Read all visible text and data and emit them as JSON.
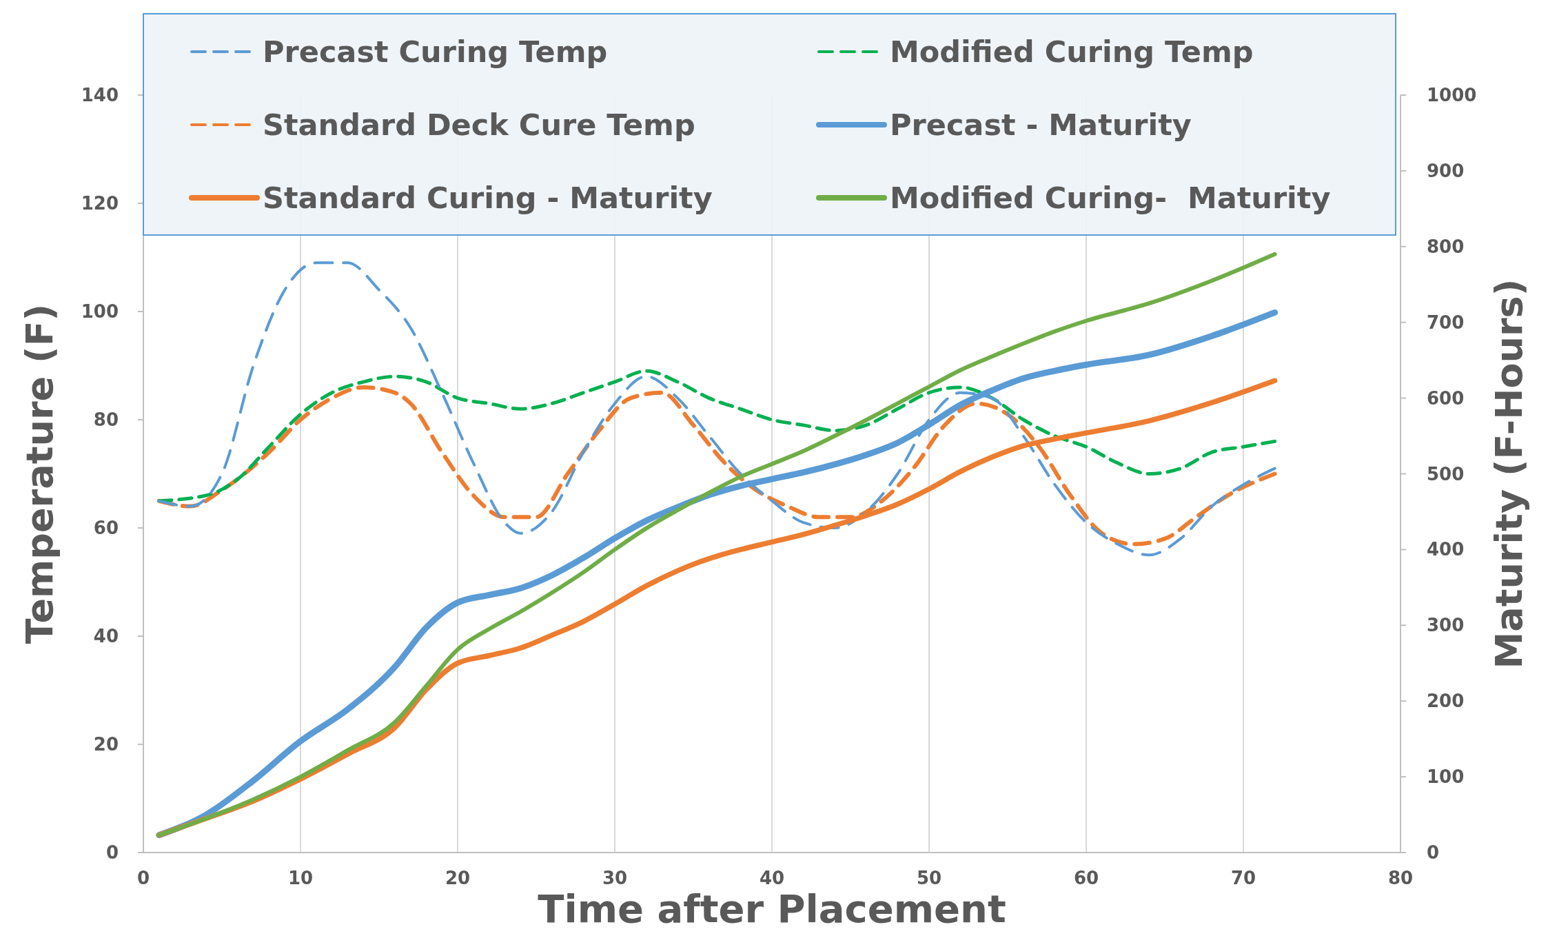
{
  "chart_data": {
    "type": "line",
    "xlabel": "Time after Placement",
    "ylabel": "Temperature (F)",
    "y2label": "Maturity (F-Hours)",
    "xlim": [
      0,
      80
    ],
    "xticks": [
      0,
      10,
      20,
      30,
      40,
      50,
      60,
      70,
      80
    ],
    "ylim": [
      0,
      140
    ],
    "yticks": [
      0,
      20,
      40,
      60,
      80,
      100,
      120,
      140
    ],
    "y2lim": [
      0,
      1000
    ],
    "y2ticks": [
      0,
      100,
      200,
      300,
      400,
      500,
      600,
      700,
      800,
      900,
      1000
    ],
    "grid": "x",
    "legend": "top",
    "series": [
      {
        "name": "Precast Curing Temp",
        "color": "#5b9bd5",
        "line_style": "dashed",
        "x": [
          1,
          3,
          5,
          7,
          9,
          11,
          13,
          15,
          17,
          19,
          21,
          23,
          24,
          26,
          28,
          30,
          32,
          34,
          36,
          38,
          40,
          42,
          44,
          46,
          48,
          50,
          52,
          54,
          56,
          58,
          60,
          62,
          64,
          66,
          68,
          70,
          72
        ],
        "values": [
          65,
          64,
          70,
          90,
          104,
          109,
          109,
          104,
          97,
          85,
          72,
          61,
          59,
          63,
          74,
          83,
          88,
          84,
          77,
          70,
          65,
          61,
          60,
          63,
          70,
          80,
          85,
          84,
          77,
          68,
          61,
          57,
          55,
          58,
          64,
          68,
          71
        ]
      },
      {
        "name": "Modified Curing Temp",
        "color": "#00b050",
        "line_style": "dashed",
        "x": [
          1,
          4,
          6,
          8,
          10,
          12,
          14,
          16,
          18,
          20,
          22,
          24,
          26,
          28,
          30,
          32,
          34,
          36,
          38,
          40,
          42,
          44,
          46,
          48,
          50,
          52,
          54,
          56,
          58,
          60,
          62,
          64,
          66,
          68,
          70,
          72
        ],
        "values": [
          65,
          66,
          69,
          75,
          81,
          85,
          87,
          88,
          87,
          84,
          83,
          82,
          83,
          85,
          87,
          89,
          87,
          84,
          82,
          80,
          79,
          78,
          79,
          82,
          85,
          86,
          84,
          80,
          77,
          75,
          72,
          70,
          71,
          74,
          75,
          76
        ]
      },
      {
        "name": "Standard Deck Cure Temp",
        "color": "#ed7d31",
        "line_style": "dashed",
        "x": [
          1,
          3,
          5,
          8,
          10,
          12,
          14,
          16,
          17,
          19,
          21,
          23,
          25,
          27,
          29,
          31,
          33,
          35,
          37,
          39,
          41,
          43,
          45,
          47,
          49,
          51,
          53,
          55,
          57,
          59,
          61,
          63,
          65,
          67,
          69,
          72
        ],
        "values": [
          65,
          64,
          67,
          74,
          80,
          84,
          86,
          85,
          83,
          74,
          66,
          62,
          62,
          70,
          78,
          84,
          85,
          79,
          72,
          67,
          64,
          62,
          62,
          65,
          71,
          79,
          83,
          81,
          75,
          66,
          59,
          57,
          58,
          62,
          66,
          70
        ]
      },
      {
        "name": "Precast - Maturity",
        "color": "#5b9bd5",
        "line_style": "solid",
        "axis": "y2",
        "x": [
          1,
          4,
          7,
          10,
          13,
          16,
          18,
          20,
          22,
          24,
          26,
          28,
          30,
          32,
          34,
          36,
          38,
          40,
          43,
          46,
          48,
          50,
          52,
          54,
          56,
          58,
          60,
          64,
          68,
          72
        ],
        "values": [
          23,
          50,
          95,
          147,
          189,
          245,
          297,
          330,
          340,
          349,
          366,
          389,
          415,
          438,
          456,
          472,
          484,
          493,
          507,
          525,
          541,
          565,
          591,
          610,
          626,
          636,
          644,
          657,
          682,
          713
        ]
      },
      {
        "name": "Standard Curing - Maturity",
        "color": "#ed7d31",
        "line_style": "solid",
        "axis": "y2",
        "x": [
          1,
          4,
          7,
          10,
          13,
          16,
          18,
          20,
          22,
          24,
          26,
          28,
          30,
          32,
          34,
          36,
          38,
          40,
          42,
          44,
          46,
          48,
          50,
          52,
          54,
          56,
          58,
          60,
          64,
          68,
          72
        ],
        "values": [
          23,
          45,
          68,
          97,
          130,
          165,
          215,
          250,
          260,
          270,
          287,
          305,
          328,
          352,
          372,
          388,
          400,
          410,
          420,
          432,
          445,
          460,
          480,
          503,
          522,
          537,
          546,
          554,
          570,
          594,
          623
        ]
      },
      {
        "name": "Modified Curing-  Maturity",
        "color": "#70ad47",
        "line_style": "solid",
        "axis": "y2",
        "x": [
          1,
          4,
          7,
          10,
          13,
          16,
          18,
          20,
          22,
          24,
          26,
          28,
          30,
          32,
          34,
          36,
          38,
          40,
          42,
          44,
          46,
          48,
          50,
          52,
          54,
          56,
          58,
          60,
          64,
          68,
          72
        ],
        "values": [
          23,
          45,
          70,
          100,
          135,
          172,
          220,
          268,
          295,
          318,
          343,
          370,
          400,
          428,
          452,
          475,
          496,
          513,
          530,
          550,
          571,
          593,
          615,
          637,
          655,
          672,
          688,
          702,
          725,
          755,
          790
        ]
      }
    ]
  }
}
